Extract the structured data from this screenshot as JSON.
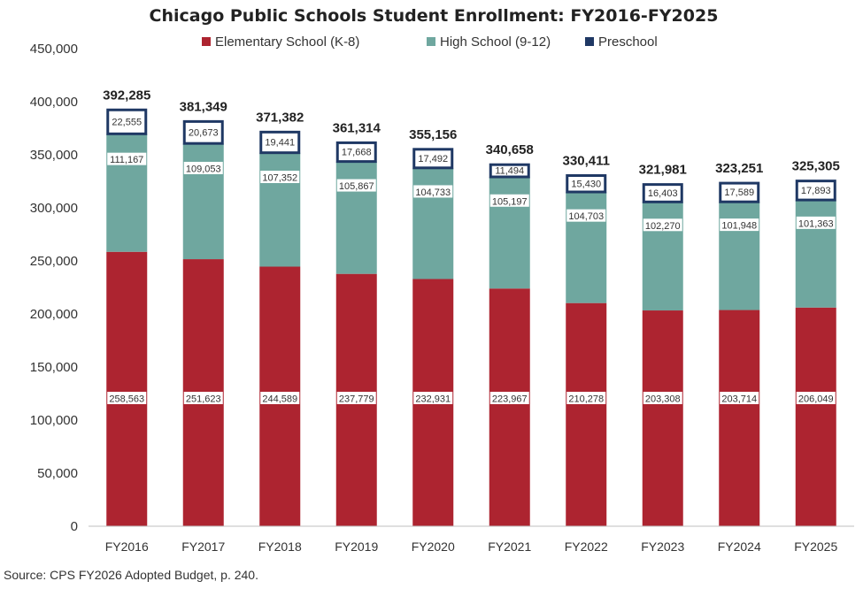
{
  "chart_data": {
    "type": "bar",
    "stacked": true,
    "title": "Chicago Public Schools Student Enrollment: FY2016-FY2025",
    "categories": [
      "FY2016",
      "FY2017",
      "FY2018",
      "FY2019",
      "FY2020",
      "FY2021",
      "FY2022",
      "FY2023",
      "FY2024",
      "FY2025"
    ],
    "series": [
      {
        "name": "Elementary School (K-8)",
        "color": "#AD2430",
        "values": [
          258563,
          251623,
          244589,
          237779,
          232931,
          223967,
          210278,
          203308,
          203714,
          206049
        ],
        "labels": [
          "258,563",
          "251,623",
          "244,589",
          "237,779",
          "232,931",
          "223,967",
          "210,278",
          "203,308",
          "203,714",
          "206,049"
        ]
      },
      {
        "name": "High School (9-12)",
        "color": "#6FA79F",
        "values": [
          111167,
          109053,
          107352,
          105867,
          104733,
          105197,
          104703,
          102270,
          101948,
          101363
        ],
        "labels": [
          "111,167",
          "109,053",
          "107,352",
          "105,867",
          "104,733",
          "105,197",
          "104,703",
          "102,270",
          "101,948",
          "101,363"
        ]
      },
      {
        "name": "Preschool",
        "color": "#1F3864",
        "values": [
          22555,
          20673,
          19441,
          17668,
          17492,
          11494,
          15430,
          16403,
          17589,
          17893
        ],
        "labels": [
          "22,555",
          "20,673",
          "19,441",
          "17,668",
          "17,492",
          "11,494",
          "15,430",
          "16,403",
          "17,589",
          "17,893"
        ]
      }
    ],
    "totals": [
      392285,
      381349,
      371382,
      361314,
      355156,
      340658,
      330411,
      321981,
      323251,
      325305
    ],
    "total_labels": [
      "392,285",
      "381,349",
      "371,382",
      "361,314",
      "355,156",
      "340,658",
      "330,411",
      "321,981",
      "323,251",
      "325,305"
    ],
    "ylim": [
      0,
      450000
    ],
    "y_ticks": [
      0,
      50000,
      100000,
      150000,
      200000,
      250000,
      300000,
      350000,
      400000,
      450000
    ],
    "y_tick_labels": [
      "0",
      "50,000",
      "100,000",
      "150,000",
      "200,000",
      "250,000",
      "300,000",
      "350,000",
      "400,000",
      "450,000"
    ],
    "xlabel": "",
    "ylabel": "",
    "grid": false,
    "legend_position": "top"
  },
  "source": "Source: CPS FY2026 Adopted Budget, p. 240."
}
